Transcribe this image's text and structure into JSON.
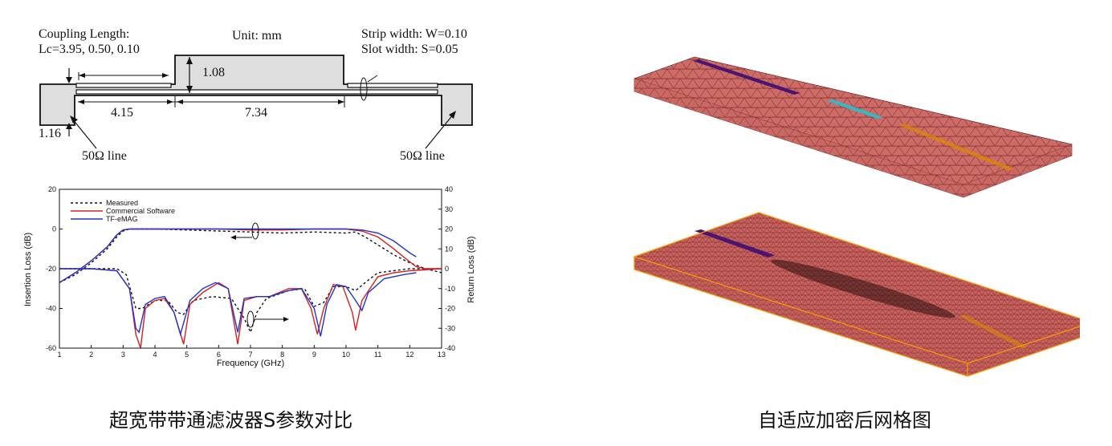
{
  "schematic": {
    "unit": "Unit: mm",
    "coupling_line1": "Coupling Length:",
    "coupling_line2": "Lc=3.95, 0.50, 0.10",
    "strip_width": "Strip width: W=0.10",
    "slot_width": "Slot width: S=0.05",
    "dim_108": "1.08",
    "dim_415": "4.15",
    "dim_734": "7.34",
    "dim_116": "1.16",
    "line_left": "50Ω line",
    "line_right": "50Ω line"
  },
  "chart_data": {
    "type": "line",
    "xlabel": "Frequency (GHz)",
    "ylabel_left": "Insertion Loss (dB)",
    "ylabel_right": "Return Loss (dB)",
    "xlim": [
      1,
      13
    ],
    "ylim_left": [
      -60,
      20
    ],
    "ylim_right": [
      -40,
      40
    ],
    "x_ticks": [
      "1",
      "2",
      "3",
      "4",
      "5",
      "6",
      "7",
      "8",
      "9",
      "10",
      "11",
      "12",
      "13"
    ],
    "y_ticks_left": [
      "20",
      "0",
      "-20",
      "-40",
      "-60"
    ],
    "y_ticks_right": [
      "40",
      "30",
      "20",
      "10",
      "0",
      "-10",
      "-20",
      "-30",
      "-40"
    ],
    "legend_position": "top-left",
    "series": [
      {
        "name": "Measured",
        "color": "#111111",
        "dashed": true,
        "insertion": [
          [
            1,
            -27
          ],
          [
            1.5,
            -23
          ],
          [
            2,
            -17
          ],
          [
            2.5,
            -10
          ],
          [
            2.8,
            -4
          ],
          [
            3,
            -1
          ],
          [
            3.2,
            0
          ],
          [
            4,
            0
          ],
          [
            5,
            -0.5
          ],
          [
            6,
            -1
          ],
          [
            7,
            -1.5
          ],
          [
            8,
            -2
          ],
          [
            9,
            -1.5
          ],
          [
            10,
            -2
          ],
          [
            10.3,
            -1.5
          ],
          [
            10.6,
            -4
          ],
          [
            11,
            -8
          ],
          [
            11.5,
            -13
          ],
          [
            12,
            -17
          ],
          [
            12.5,
            -20
          ],
          [
            13,
            -22
          ]
        ],
        "return": [
          [
            1,
            0
          ],
          [
            2,
            0
          ],
          [
            2.8,
            0
          ],
          [
            3.1,
            -3
          ],
          [
            3.4,
            -20
          ],
          [
            3.6,
            -20
          ],
          [
            4,
            -16
          ],
          [
            4.4,
            -16
          ],
          [
            4.7,
            -22
          ],
          [
            4.9,
            -23
          ],
          [
            5.2,
            -16
          ],
          [
            5.8,
            -14
          ],
          [
            6.4,
            -15
          ],
          [
            6.8,
            -25
          ],
          [
            7,
            -32
          ],
          [
            7.2,
            -22
          ],
          [
            7.5,
            -15
          ],
          [
            8.2,
            -11
          ],
          [
            8.7,
            -10
          ],
          [
            9,
            -19
          ],
          [
            9.3,
            -17
          ],
          [
            9.6,
            -9
          ],
          [
            10,
            -9
          ],
          [
            10.3,
            -11
          ],
          [
            10.6,
            -7
          ],
          [
            11,
            -2
          ],
          [
            11.5,
            -1
          ],
          [
            12,
            0
          ],
          [
            12.5,
            0
          ],
          [
            13,
            0
          ]
        ]
      },
      {
        "name": "Commercial Software",
        "color": "#d42020",
        "dashed": false,
        "insertion": [
          [
            1,
            -27
          ],
          [
            1.5,
            -22
          ],
          [
            2,
            -16
          ],
          [
            2.5,
            -9
          ],
          [
            2.8,
            -3
          ],
          [
            3,
            -0.5
          ],
          [
            3.2,
            0
          ],
          [
            4,
            0
          ],
          [
            5,
            0
          ],
          [
            6,
            0
          ],
          [
            7,
            -0.5
          ],
          [
            8,
            -0.5
          ],
          [
            9,
            0
          ],
          [
            10,
            0
          ],
          [
            10.5,
            -1
          ],
          [
            11,
            -4
          ],
          [
            11.5,
            -10
          ],
          [
            11.8,
            -14
          ],
          [
            12.2,
            -19
          ],
          [
            12.5,
            -20
          ],
          [
            13,
            -20
          ]
        ],
        "return": [
          [
            1,
            0
          ],
          [
            2,
            0
          ],
          [
            2.8,
            -1
          ],
          [
            3.2,
            -10
          ],
          [
            3.4,
            -33
          ],
          [
            3.55,
            -40
          ],
          [
            3.7,
            -20
          ],
          [
            4,
            -16
          ],
          [
            4.3,
            -15
          ],
          [
            4.6,
            -22
          ],
          [
            4.9,
            -38
          ],
          [
            5.1,
            -18
          ],
          [
            5.5,
            -12
          ],
          [
            6,
            -7
          ],
          [
            6.3,
            -10
          ],
          [
            6.6,
            -38
          ],
          [
            6.8,
            -16
          ],
          [
            7.2,
            -14
          ],
          [
            7.6,
            -14
          ],
          [
            8.2,
            -10
          ],
          [
            8.6,
            -10
          ],
          [
            8.9,
            -20
          ],
          [
            9.1,
            -33
          ],
          [
            9.3,
            -20
          ],
          [
            9.6,
            -8
          ],
          [
            9.9,
            -9
          ],
          [
            10.2,
            -22
          ],
          [
            10.3,
            -31
          ],
          [
            10.5,
            -16
          ],
          [
            11,
            -4
          ],
          [
            11.5,
            -2
          ],
          [
            12,
            -1
          ],
          [
            13,
            0
          ]
        ]
      },
      {
        "name": "TF-eMAG",
        "color": "#2233cc",
        "dashed": false,
        "insertion": [
          [
            1,
            -27
          ],
          [
            1.5,
            -22
          ],
          [
            2,
            -16
          ],
          [
            2.5,
            -9
          ],
          [
            2.8,
            -3
          ],
          [
            3,
            -0.5
          ],
          [
            3.2,
            0
          ],
          [
            4,
            0
          ],
          [
            5,
            0
          ],
          [
            6,
            0
          ],
          [
            7,
            0
          ],
          [
            8,
            0
          ],
          [
            9,
            0
          ],
          [
            10,
            0
          ],
          [
            10.5,
            -0.5
          ],
          [
            11,
            -2
          ],
          [
            11.5,
            -6
          ],
          [
            12,
            -12
          ],
          [
            12.2,
            -14
          ]
        ],
        "return": [
          [
            1,
            0
          ],
          [
            2,
            0
          ],
          [
            2.8,
            -1
          ],
          [
            3.2,
            -10
          ],
          [
            3.4,
            -30
          ],
          [
            3.5,
            -32
          ],
          [
            3.7,
            -18
          ],
          [
            4,
            -15
          ],
          [
            4.3,
            -14
          ],
          [
            4.6,
            -22
          ],
          [
            4.8,
            -33
          ],
          [
            5.1,
            -16
          ],
          [
            5.5,
            -10
          ],
          [
            5.9,
            -7
          ],
          [
            6.3,
            -10
          ],
          [
            6.6,
            -32
          ],
          [
            6.8,
            -15
          ],
          [
            7.2,
            -14
          ],
          [
            7.6,
            -14
          ],
          [
            8.2,
            -11
          ],
          [
            8.6,
            -10
          ],
          [
            9,
            -20
          ],
          [
            9.2,
            -34
          ],
          [
            9.4,
            -18
          ],
          [
            9.7,
            -8
          ],
          [
            10,
            -9
          ],
          [
            10.3,
            -16
          ],
          [
            10.5,
            -21
          ],
          [
            10.7,
            -12
          ],
          [
            11.2,
            -5
          ],
          [
            11.8,
            -3
          ],
          [
            12.2,
            -2
          ]
        ]
      }
    ]
  },
  "captions": {
    "left": "超宽带带通滤波器S参数对比",
    "right": "自适应加密后网格图"
  },
  "colors": {
    "mesh_fill": "#cd6b67",
    "mesh_stroke": "#6b2323",
    "strip_purple": "#4a1570",
    "strip_cyan": "#35b7c6",
    "strip_orange": "#e08a00",
    "box_outline": "#ff9a00"
  }
}
